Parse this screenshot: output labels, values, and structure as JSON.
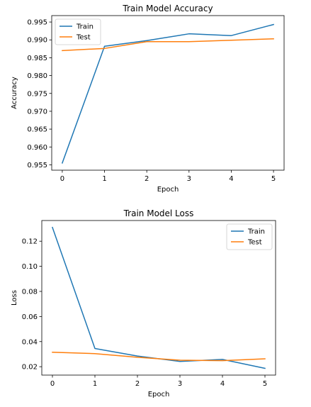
{
  "colors": {
    "train": "#1f77b4",
    "test": "#ff7f0e"
  },
  "chart_data": [
    {
      "type": "line",
      "title": "Train Model Accuracy",
      "xlabel": "Epoch",
      "ylabel": "Accuracy",
      "x": [
        0,
        1,
        2,
        3,
        4,
        5
      ],
      "xticks": [
        "0",
        "1",
        "2",
        "3",
        "4",
        "5"
      ],
      "yticks": [
        "0.955",
        "0.960",
        "0.965",
        "0.970",
        "0.975",
        "0.980",
        "0.985",
        "0.990",
        "0.995"
      ],
      "xlim": [
        -0.25,
        5.25
      ],
      "ylim": [
        0.9535,
        0.9968
      ],
      "grid": false,
      "legend": "upper left",
      "series": [
        {
          "name": "Train",
          "color": "#1f77b4",
          "values": [
            0.9555,
            0.9882,
            0.9898,
            0.9917,
            0.9912,
            0.9943
          ]
        },
        {
          "name": "Test",
          "color": "#ff7f0e",
          "values": [
            0.987,
            0.9876,
            0.9895,
            0.9895,
            0.9899,
            0.9903
          ]
        }
      ]
    },
    {
      "type": "line",
      "title": "Train Model Loss",
      "xlabel": "Epoch",
      "ylabel": "Loss",
      "x": [
        0,
        1,
        2,
        3,
        4,
        5
      ],
      "xticks": [
        "0",
        "1",
        "2",
        "3",
        "4",
        "5"
      ],
      "yticks": [
        "0.02",
        "0.04",
        "0.06",
        "0.08",
        "0.10",
        "0.12"
      ],
      "xlim": [
        -0.25,
        5.25
      ],
      "ylim": [
        0.0133,
        0.1365
      ],
      "grid": false,
      "legend": "upper right",
      "series": [
        {
          "name": "Train",
          "color": "#1f77b4",
          "values": [
            0.131,
            0.0345,
            0.0285,
            0.0242,
            0.0258,
            0.0187
          ]
        },
        {
          "name": "Test",
          "color": "#ff7f0e",
          "values": [
            0.0315,
            0.0304,
            0.0275,
            0.0252,
            0.0248,
            0.0263
          ]
        }
      ]
    }
  ]
}
